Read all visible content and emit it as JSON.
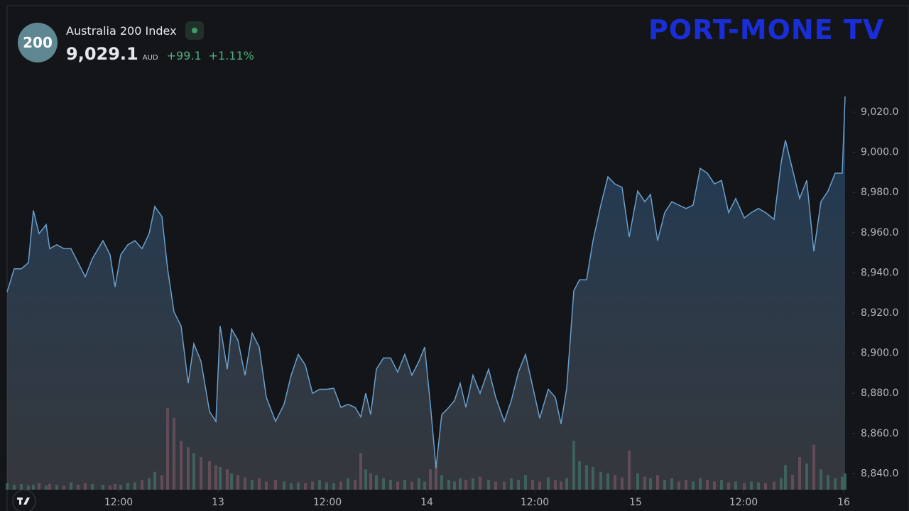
{
  "chart_data": {
    "type": "area",
    "badge": "200",
    "title": "Australia 200 Index",
    "price": "9,029.1",
    "currency": "AUD",
    "change": "+99.1",
    "change_pct": "+1.11%",
    "logo": "PORT-MONE TV",
    "color": "#6a9fcb",
    "x": [
      0,
      1,
      2,
      3,
      3.7,
      4.5,
      5.5,
      6,
      7,
      8,
      9,
      10,
      11,
      12,
      13.5,
      14.5,
      15.2,
      16,
      17,
      18,
      19,
      20,
      20.8,
      21.8,
      22.6,
      23.5,
      24.5,
      25.5,
      26.3,
      27.3,
      28.5,
      29.4,
      30,
      31,
      31.6,
      32.5,
      33.5,
      34.5,
      35.5,
      36.5,
      37.8,
      39,
      40,
      41,
      42,
      43,
      44,
      45,
      46,
      47,
      48,
      49,
      49.8,
      50.5,
      51.2,
      52,
      53,
      54,
      55,
      56,
      57,
      58,
      58.8,
      59.6,
      60.4,
      61.2,
      62.2,
      63,
      63.8,
      64.6,
      65.6,
      66.6,
      67.8,
      68.8,
      70,
      71,
      72,
      73,
      74,
      75,
      76.2,
      77.2,
      78,
      78.8,
      79.8,
      80.6,
      81.6,
      82.5,
      83.6,
      84.6,
      85.6,
      86.6,
      87.6,
      88.8,
      89.8,
      90.6,
      91.6,
      92.6,
      93.6,
      94.6,
      95.6,
      96.6,
      97.6,
      98.6,
      99.6,
      100.6,
      101.6,
      102.6,
      103.8,
      104.8,
      105.8,
      106.8,
      108,
      109,
      109.6,
      110.6,
      111.6,
      112.6,
      113.6,
      114.6,
      115.6,
      116.6,
      117.6,
      118
    ],
    "values": [
      8930.5,
      8942,
      8942,
      8945,
      8971,
      8959.5,
      8964,
      8952,
      8954,
      8952,
      8952,
      8945,
      8938,
      8947,
      8956,
      8949,
      8933,
      8949,
      8954,
      8956,
      8952,
      8959.5,
      8973,
      8968,
      8942,
      8920.6,
      8913.5,
      8885,
      8904.7,
      8896,
      8871,
      8866,
      8913.5,
      8892,
      8912,
      8906.5,
      8889,
      8910,
      8903,
      8878,
      8866,
      8874.5,
      8889,
      8899.4,
      8894,
      8880,
      8882,
      8882,
      8882.5,
      8873,
      8874.5,
      8873,
      8868.3,
      8880,
      8869.4,
      8892,
      8897.6,
      8897.6,
      8890.6,
      8899.4,
      8889,
      8896,
      8903,
      8874.5,
      8842.8,
      8869.4,
      8873,
      8876.4,
      8885,
      8873,
      8889,
      8880,
      8892,
      8878,
      8866,
      8876.4,
      8890.6,
      8899.4,
      8883.5,
      8867.6,
      8882,
      8878,
      8864.8,
      8882.5,
      8931,
      8936.5,
      8936.5,
      8956,
      8973.7,
      8987.8,
      8984.2,
      8982.5,
      8957.8,
      8980.7,
      8975.4,
      8979,
      8956,
      8970,
      8975.4,
      8973.7,
      8972,
      8973.7,
      8992,
      8989.6,
      8984.3,
      8986,
      8970,
      8977,
      8967.3,
      8970,
      8972,
      8970,
      8966.6,
      8995,
      9006,
      8991.4,
      8977,
      8986,
      8950.7,
      8975.4,
      8980.7,
      8989.6,
      8989.6,
      9027.8
    ],
    "volume": {
      "up_color": "#2f6e5c",
      "down_color": "#7d4250",
      "values": [
        8,
        6,
        7,
        5,
        6,
        8,
        5,
        7,
        6,
        5,
        9,
        6,
        8,
        7,
        6,
        5,
        7,
        6,
        8,
        9,
        12,
        14,
        22,
        18,
        100,
        88,
        60,
        52,
        45,
        40,
        35,
        30,
        28,
        25,
        20,
        18,
        15,
        12,
        14,
        10,
        12,
        10,
        8,
        9,
        8,
        10,
        12,
        9,
        8,
        10,
        14,
        12,
        45,
        25,
        20,
        18,
        14,
        12,
        10,
        12,
        10,
        14,
        10,
        25,
        30,
        18,
        12,
        10,
        14,
        12,
        14,
        16,
        12,
        10,
        10,
        14,
        12,
        18,
        12,
        10,
        15,
        12,
        10,
        14,
        60,
        35,
        30,
        28,
        22,
        20,
        18,
        15,
        48,
        20,
        16,
        14,
        18,
        12,
        14,
        10,
        12,
        10,
        14,
        12,
        10,
        12,
        9,
        10,
        8,
        10,
        9,
        8,
        10,
        14,
        30,
        18,
        40,
        32,
        55,
        25,
        18,
        14,
        16,
        20
      ]
    },
    "xlim": [
      0,
      119
    ],
    "xticks": [
      {
        "value": 15.7,
        "label": "12:00"
      },
      {
        "value": 29.7,
        "label": "13"
      },
      {
        "value": 45.1,
        "label": "12:00"
      },
      {
        "value": 59.1,
        "label": "14"
      },
      {
        "value": 74.3,
        "label": "12:00"
      },
      {
        "value": 88.5,
        "label": "15"
      },
      {
        "value": 103.7,
        "label": "12:00"
      },
      {
        "value": 117.8,
        "label": "16"
      }
    ],
    "ylim": [
      8832,
      9073
    ],
    "yticks": [
      {
        "value": 8840,
        "label": "8,840.0"
      },
      {
        "value": 8860,
        "label": "8,860.0"
      },
      {
        "value": 8880,
        "label": "8,880.0"
      },
      {
        "value": 8900,
        "label": "8,900.0"
      },
      {
        "value": 8920,
        "label": "8,920.0"
      },
      {
        "value": 8940,
        "label": "8,940.0"
      },
      {
        "value": 8960,
        "label": "8,960.0"
      },
      {
        "value": 8980,
        "label": "8,980.0"
      },
      {
        "value": 9000,
        "label": "9,000.0"
      },
      {
        "value": 9020,
        "label": "9,020.0"
      }
    ],
    "grid": false
  }
}
